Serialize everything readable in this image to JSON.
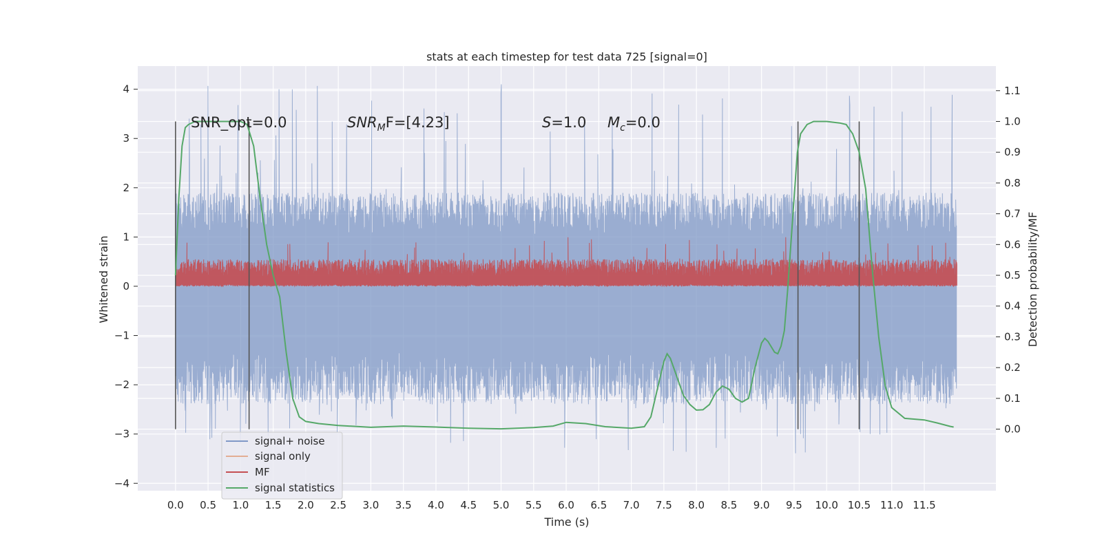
{
  "chart_data": {
    "type": "line",
    "title": "stats at each timestep for test data 725 [signal=0]",
    "xlabel": "Time (s)",
    "ylabel_left": "Whitened strain",
    "ylabel_right": "Detection probability/MF",
    "xlim": [
      -0.58,
      12.6
    ],
    "ylim_left": [
      -4.15,
      4.47
    ],
    "ylim_right": [
      -0.2,
      1.18
    ],
    "x_ticks": [
      "0.0",
      "0.5",
      "1.0",
      "1.5",
      "2.0",
      "2.5",
      "3.0",
      "3.5",
      "4.0",
      "4.5",
      "5.0",
      "5.5",
      "6.0",
      "6.5",
      "7.0",
      "7.5",
      "8.0",
      "8.5",
      "9.0",
      "9.5",
      "10.0",
      "10.5",
      "11.0",
      "11.5"
    ],
    "y_ticks_left": [
      "−4",
      "−3",
      "−2",
      "−1",
      "0",
      "1",
      "2",
      "3",
      "4"
    ],
    "y_ticks_right": [
      "0.0",
      "0.1",
      "0.2",
      "0.3",
      "0.4",
      "0.5",
      "0.6",
      "0.7",
      "0.8",
      "0.9",
      "1.0",
      "1.1"
    ],
    "grid": true,
    "legend_position": "bottom-left",
    "annotations": {
      "snr_opt": "SNR_opt=0.0",
      "snr_mf_prefix": "SNR",
      "snr_mf_sub": "M",
      "snr_mf_suffix": "F=[4.23]",
      "s_var": "S",
      "s_val": "=1.0",
      "mc_var": "M",
      "mc_sub": "c",
      "mc_val": "=0.0"
    },
    "vertical_markers": [
      0.0,
      1.13,
      9.56,
      10.5
    ],
    "series": [
      {
        "name": "signal+ noise",
        "axis": "left",
        "color": "#7f98c6",
        "envelope": {
          "x_start": 0.0,
          "x_end": 12.0,
          "typical_max": 1.9,
          "typical_min": -2.4,
          "peak_max": 4.1,
          "peak_min": -3.4
        }
      },
      {
        "name": "signal only",
        "axis": "left",
        "color": "#dd8452",
        "values_note": "not visible"
      },
      {
        "name": "MF",
        "axis": "left",
        "color": "#c44e52",
        "envelope": {
          "x_start": 0.0,
          "x_end": 12.0,
          "base": 0.0,
          "typical_max": 0.55,
          "peak_max": 1.0
        }
      },
      {
        "name": "signal statistics",
        "axis": "right",
        "color": "#55a868",
        "points": [
          [
            0.0,
            0.5
          ],
          [
            0.05,
            0.75
          ],
          [
            0.1,
            0.92
          ],
          [
            0.15,
            0.98
          ],
          [
            0.2,
            0.99
          ],
          [
            0.3,
            1.0
          ],
          [
            0.5,
            1.0
          ],
          [
            0.8,
            1.0
          ],
          [
            1.0,
            1.0
          ],
          [
            1.1,
            0.99
          ],
          [
            1.2,
            0.92
          ],
          [
            1.3,
            0.75
          ],
          [
            1.4,
            0.6
          ],
          [
            1.5,
            0.5
          ],
          [
            1.6,
            0.43
          ],
          [
            1.7,
            0.25
          ],
          [
            1.8,
            0.1
          ],
          [
            1.9,
            0.04
          ],
          [
            2.0,
            0.025
          ],
          [
            2.2,
            0.018
          ],
          [
            2.5,
            0.012
          ],
          [
            3.0,
            0.006
          ],
          [
            3.5,
            0.01
          ],
          [
            4.0,
            0.007
          ],
          [
            4.5,
            0.003
          ],
          [
            5.0,
            0.001
          ],
          [
            5.5,
            0.005
          ],
          [
            5.8,
            0.01
          ],
          [
            6.0,
            0.022
          ],
          [
            6.3,
            0.018
          ],
          [
            6.6,
            0.008
          ],
          [
            7.0,
            0.003
          ],
          [
            7.2,
            0.008
          ],
          [
            7.3,
            0.04
          ],
          [
            7.4,
            0.13
          ],
          [
            7.5,
            0.22
          ],
          [
            7.55,
            0.245
          ],
          [
            7.6,
            0.23
          ],
          [
            7.7,
            0.17
          ],
          [
            7.8,
            0.11
          ],
          [
            7.9,
            0.08
          ],
          [
            8.0,
            0.062
          ],
          [
            8.1,
            0.063
          ],
          [
            8.2,
            0.08
          ],
          [
            8.3,
            0.12
          ],
          [
            8.4,
            0.14
          ],
          [
            8.5,
            0.13
          ],
          [
            8.6,
            0.1
          ],
          [
            8.7,
            0.088
          ],
          [
            8.8,
            0.1
          ],
          [
            8.9,
            0.2
          ],
          [
            9.0,
            0.28
          ],
          [
            9.05,
            0.295
          ],
          [
            9.1,
            0.285
          ],
          [
            9.2,
            0.25
          ],
          [
            9.25,
            0.245
          ],
          [
            9.3,
            0.27
          ],
          [
            9.35,
            0.32
          ],
          [
            9.4,
            0.45
          ],
          [
            9.5,
            0.75
          ],
          [
            9.55,
            0.9
          ],
          [
            9.6,
            0.96
          ],
          [
            9.7,
            0.99
          ],
          [
            9.8,
            1.0
          ],
          [
            10.0,
            1.0
          ],
          [
            10.2,
            0.995
          ],
          [
            10.3,
            0.99
          ],
          [
            10.4,
            0.96
          ],
          [
            10.5,
            0.9
          ],
          [
            10.6,
            0.78
          ],
          [
            10.7,
            0.52
          ],
          [
            10.8,
            0.3
          ],
          [
            10.9,
            0.14
          ],
          [
            11.0,
            0.07
          ],
          [
            11.2,
            0.035
          ],
          [
            11.5,
            0.03
          ],
          [
            11.7,
            0.02
          ],
          [
            11.9,
            0.009
          ],
          [
            11.95,
            0.007
          ]
        ]
      }
    ]
  }
}
